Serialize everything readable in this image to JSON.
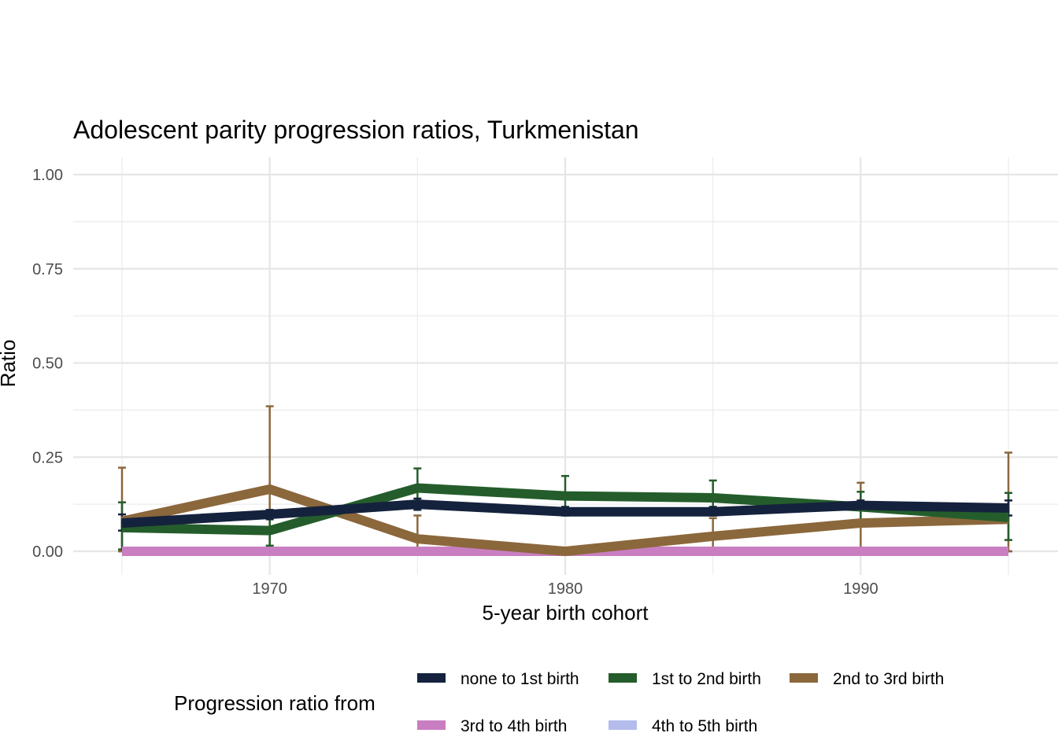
{
  "chart_data": {
    "type": "line",
    "title": "Adolescent parity progression ratios,  Turkmenistan",
    "xlabel": "5-year birth cohort",
    "ylabel": "Ratio",
    "xlim": [
      1964,
      1996
    ],
    "ylim": [
      0,
      1
    ],
    "x_ticks": [
      1970,
      1980,
      1990
    ],
    "x_tick_labels": [
      "1970",
      "1980",
      "1990"
    ],
    "y_ticks": [
      0,
      0.25,
      0.5,
      0.75,
      1
    ],
    "y_tick_labels": [
      "0.00",
      "0.25",
      "0.50",
      "0.75",
      "1.00"
    ],
    "grid": true,
    "legend_position": "bottom",
    "legend_title": "Progression ratio from",
    "x": [
      1965,
      1970,
      1975,
      1980,
      1985,
      1990,
      1995
    ],
    "series": [
      {
        "name": "none to 1st birth",
        "color": "#15223d",
        "values": [
          0.075,
          0.098,
          0.125,
          0.105,
          0.105,
          0.122,
          0.115
        ],
        "lower": [
          0.055,
          0.085,
          0.11,
          0.095,
          0.095,
          0.11,
          0.095
        ],
        "upper": [
          0.098,
          0.11,
          0.14,
          0.118,
          0.118,
          0.135,
          0.135
        ]
      },
      {
        "name": "1st to 2nd birth",
        "color": "#245d2b",
        "values": [
          0.063,
          0.055,
          0.168,
          0.147,
          0.142,
          0.118,
          0.09
        ],
        "lower": [
          0.005,
          0.015,
          0.115,
          0.1,
          0.095,
          0.08,
          0.03
        ],
        "upper": [
          0.13,
          0.098,
          0.22,
          0.2,
          0.188,
          0.158,
          0.155
        ]
      },
      {
        "name": "2nd to 3rd birth",
        "color": "#8b673c",
        "values": [
          0.08,
          0.165,
          0.033,
          0.0,
          0.04,
          0.075,
          0.085
        ],
        "lower": [
          0.0,
          0.0,
          0.0,
          0.0,
          0.0,
          0.0,
          0.0
        ],
        "upper": [
          0.222,
          0.385,
          0.095,
          0.0,
          0.088,
          0.182,
          0.262
        ]
      },
      {
        "name": "3rd to 4th birth",
        "color": "#c97ec2",
        "values": [
          0,
          0,
          0,
          0,
          0,
          0,
          0
        ],
        "lower": [
          0,
          0,
          0,
          0,
          0,
          0,
          0
        ],
        "upper": [
          0,
          0,
          0,
          0,
          0,
          0,
          0
        ]
      },
      {
        "name": "4th to 5th birth",
        "color": "#b3bcec",
        "values": [
          0,
          0,
          0,
          0,
          0,
          0,
          0
        ],
        "lower": [
          0,
          0,
          0,
          0,
          0,
          0,
          0
        ],
        "upper": [
          0,
          0,
          0,
          0,
          0,
          0,
          0
        ]
      }
    ]
  }
}
